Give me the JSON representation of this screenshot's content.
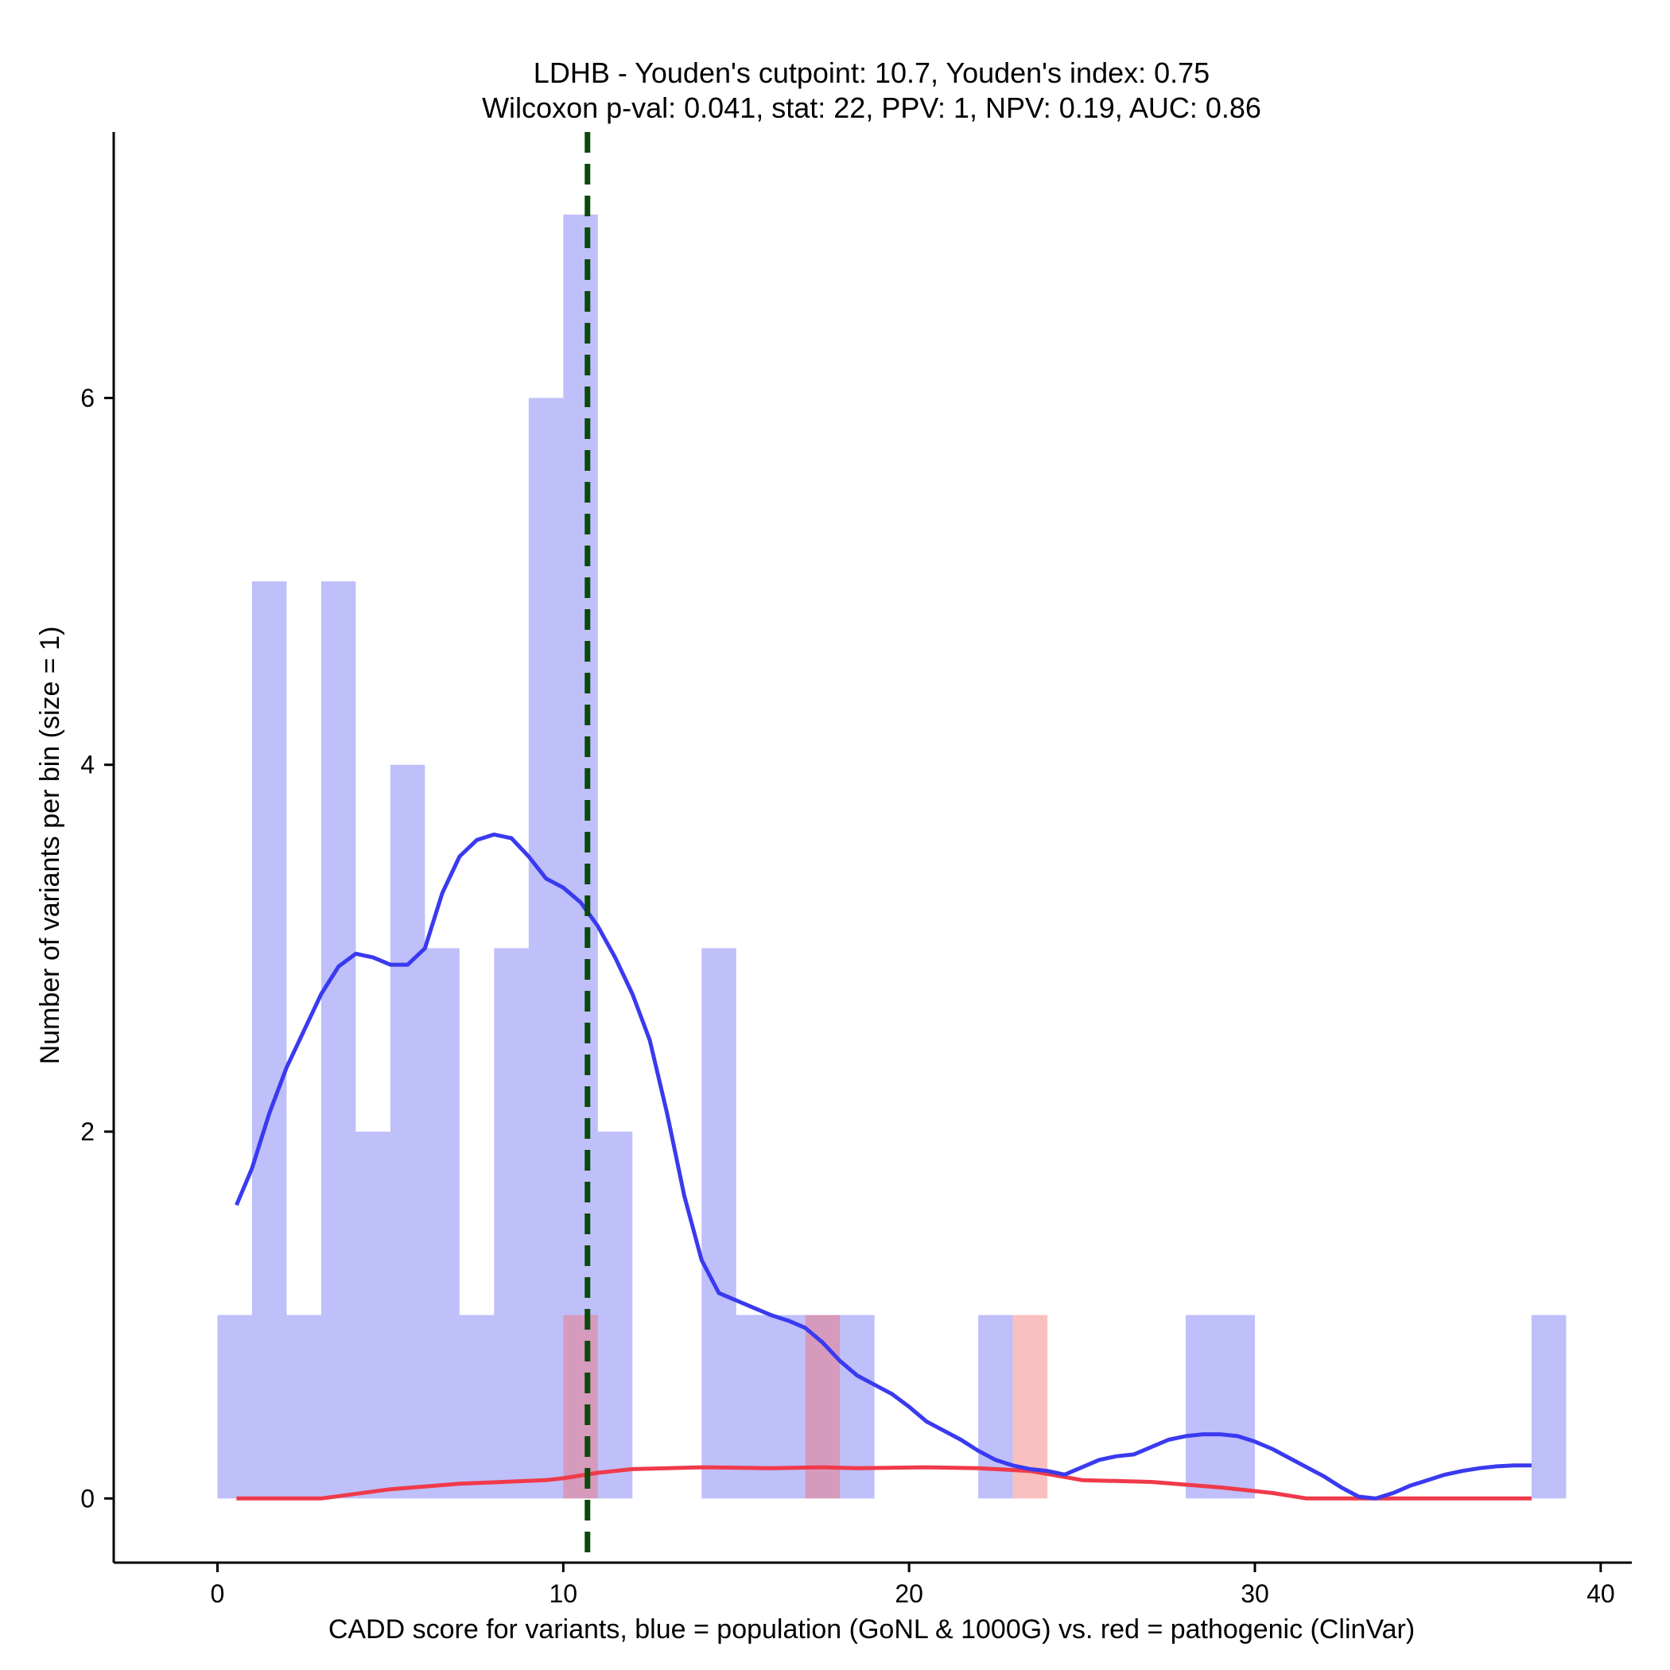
{
  "chart_data": {
    "type": "bar",
    "title_line1": "LDHB - Youden's cutpoint: 10.7, Youden's index: 0.75",
    "title_line2": "Wilcoxon p-val: 0.041, stat: 22, PPV: 1, NPV: 0.19, AUC: 0.86",
    "xlabel": "CADD score for variants, blue = population (GoNL & 1000G) vs. red = pathogenic (ClinVar)",
    "ylabel": "Number of variants per bin (size = 1)",
    "xlim": [
      -3,
      40.9
    ],
    "ylim": [
      -0.35,
      7.45
    ],
    "xticks": [
      0,
      10,
      20,
      30,
      40
    ],
    "yticks": [
      0,
      2,
      4,
      6
    ],
    "bin_width": 1,
    "cutpoint": 10.7,
    "colors": {
      "population": "#6a6af0",
      "pathogenic": "#f46a6a",
      "population_line": "#3a3af0",
      "pathogenic_line": "#f03a4a",
      "cutpoint_line": "#0a4a0a"
    },
    "series": [
      {
        "name": "population",
        "bins": [
          {
            "x": 0,
            "count": 1
          },
          {
            "x": 1,
            "count": 5
          },
          {
            "x": 2,
            "count": 1
          },
          {
            "x": 3,
            "count": 5
          },
          {
            "x": 4,
            "count": 2
          },
          {
            "x": 5,
            "count": 4
          },
          {
            "x": 6,
            "count": 3
          },
          {
            "x": 7,
            "count": 1
          },
          {
            "x": 8,
            "count": 3
          },
          {
            "x": 9,
            "count": 6
          },
          {
            "x": 10,
            "count": 7
          },
          {
            "x": 11,
            "count": 2
          },
          {
            "x": 14,
            "count": 3
          },
          {
            "x": 15,
            "count": 1
          },
          {
            "x": 16,
            "count": 1
          },
          {
            "x": 17,
            "count": 1
          },
          {
            "x": 18,
            "count": 1
          },
          {
            "x": 22,
            "count": 1
          },
          {
            "x": 28,
            "count": 1
          },
          {
            "x": 29,
            "count": 1
          },
          {
            "x": 38,
            "count": 1
          }
        ],
        "density": [
          [
            0.55,
            1.6
          ],
          [
            1,
            1.8
          ],
          [
            1.5,
            2.1
          ],
          [
            2,
            2.35
          ],
          [
            2.5,
            2.55
          ],
          [
            3,
            2.75
          ],
          [
            3.5,
            2.9
          ],
          [
            4,
            2.97
          ],
          [
            4.5,
            2.95
          ],
          [
            5,
            2.91
          ],
          [
            5.5,
            2.91
          ],
          [
            6,
            3.0
          ],
          [
            6.5,
            3.3
          ],
          [
            7,
            3.5
          ],
          [
            7.5,
            3.59
          ],
          [
            8,
            3.62
          ],
          [
            8.5,
            3.6
          ],
          [
            9,
            3.5
          ],
          [
            9.5,
            3.38
          ],
          [
            10,
            3.33
          ],
          [
            10.5,
            3.25
          ],
          [
            11,
            3.12
          ],
          [
            11.5,
            2.95
          ],
          [
            12,
            2.75
          ],
          [
            12.5,
            2.5
          ],
          [
            13,
            2.1
          ],
          [
            13.5,
            1.65
          ],
          [
            14,
            1.3
          ],
          [
            14.5,
            1.12
          ],
          [
            15,
            1.08
          ],
          [
            15.5,
            1.04
          ],
          [
            16,
            1.0
          ],
          [
            16.5,
            0.97
          ],
          [
            17,
            0.93
          ],
          [
            17.5,
            0.85
          ],
          [
            18,
            0.75
          ],
          [
            18.5,
            0.67
          ],
          [
            19,
            0.62
          ],
          [
            19.5,
            0.57
          ],
          [
            20,
            0.5
          ],
          [
            20.5,
            0.42
          ],
          [
            21,
            0.37
          ],
          [
            21.5,
            0.32
          ],
          [
            22,
            0.26
          ],
          [
            22.5,
            0.21
          ],
          [
            23,
            0.18
          ],
          [
            23.5,
            0.16
          ],
          [
            24,
            0.15
          ],
          [
            24.5,
            0.13
          ],
          [
            25,
            0.17
          ],
          [
            25.5,
            0.21
          ],
          [
            26,
            0.23
          ],
          [
            26.5,
            0.24
          ],
          [
            27,
            0.28
          ],
          [
            27.5,
            0.32
          ],
          [
            28,
            0.34
          ],
          [
            28.5,
            0.35
          ],
          [
            29,
            0.35
          ],
          [
            29.5,
            0.34
          ],
          [
            30,
            0.31
          ],
          [
            30.5,
            0.27
          ],
          [
            31,
            0.22
          ],
          [
            31.5,
            0.17
          ],
          [
            32,
            0.12
          ],
          [
            32.5,
            0.06
          ],
          [
            33,
            0.01
          ],
          [
            33.5,
            0.0
          ],
          [
            34,
            0.03
          ],
          [
            34.5,
            0.07
          ],
          [
            35,
            0.1
          ],
          [
            35.5,
            0.13
          ],
          [
            36,
            0.15
          ],
          [
            36.5,
            0.165
          ],
          [
            37,
            0.175
          ],
          [
            37.5,
            0.18
          ],
          [
            38,
            0.18
          ]
        ]
      },
      {
        "name": "pathogenic",
        "bins": [
          {
            "x": 10,
            "count": 1
          },
          {
            "x": 17,
            "count": 1
          },
          {
            "x": 23,
            "count": 1
          }
        ],
        "density": [
          [
            0.55,
            0.0
          ],
          [
            3,
            0.0
          ],
          [
            5,
            0.05
          ],
          [
            7,
            0.08
          ],
          [
            9.5,
            0.1
          ],
          [
            10,
            0.11
          ],
          [
            11,
            0.14
          ],
          [
            12,
            0.16
          ],
          [
            14,
            0.17
          ],
          [
            16,
            0.165
          ],
          [
            17.5,
            0.17
          ],
          [
            18.5,
            0.165
          ],
          [
            20.5,
            0.17
          ],
          [
            22,
            0.165
          ],
          [
            23.5,
            0.15
          ],
          [
            25,
            0.1
          ],
          [
            27,
            0.09
          ],
          [
            29,
            0.06
          ],
          [
            30.5,
            0.03
          ],
          [
            31.5,
            0.0
          ],
          [
            38,
            0.0
          ]
        ]
      }
    ]
  }
}
